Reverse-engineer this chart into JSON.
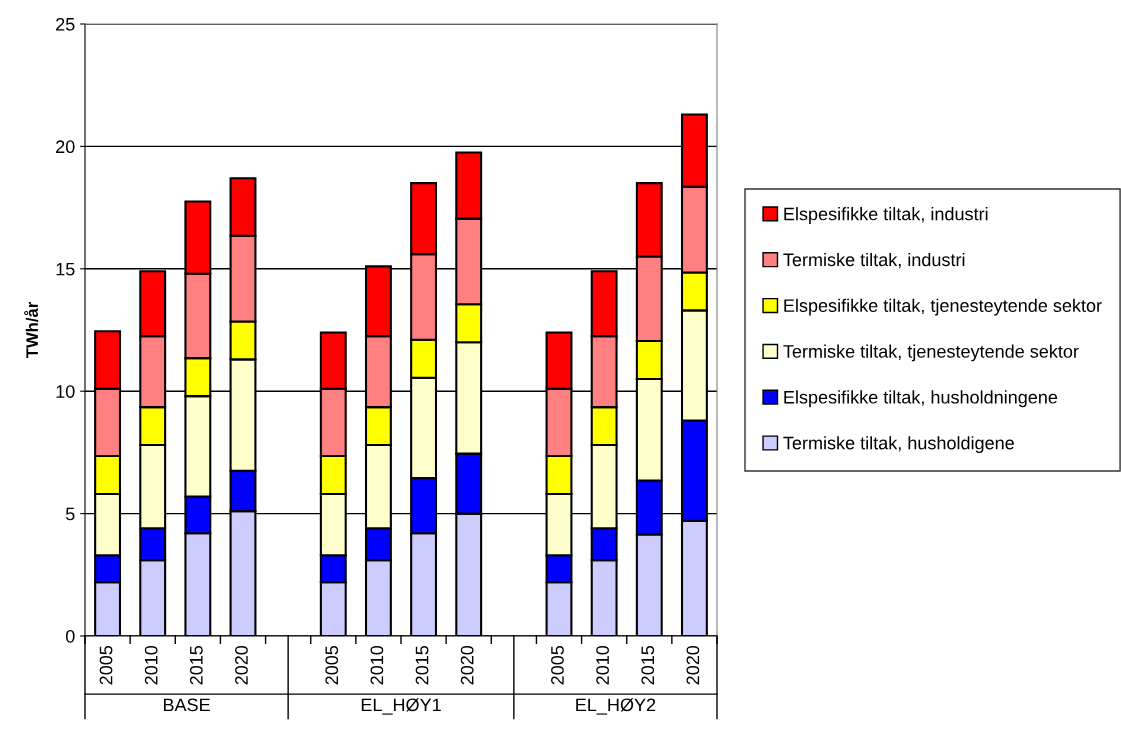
{
  "chart_data": {
    "type": "bar",
    "stacked": true,
    "ylabel": "TWh/år",
    "categories": [
      "2005",
      "2010",
      "2015",
      "2020",
      null,
      "2005",
      "2010",
      "2015",
      "2020",
      null,
      "2005",
      "2010",
      "2015",
      "2020"
    ],
    "series": [
      {
        "name": "Termiske tiltak, husholdigene",
        "color": "#ccccff",
        "values": [
          2.2,
          3.1,
          4.2,
          5.1,
          null,
          2.2,
          3.1,
          4.2,
          5.0,
          null,
          2.2,
          3.1,
          4.15,
          4.7
        ]
      },
      {
        "name": "Elspesifikke tiltak, husholdningene",
        "color": "#0000ff",
        "values": [
          1.1,
          1.3,
          1.5,
          1.65,
          null,
          1.1,
          1.3,
          2.25,
          2.45,
          null,
          1.1,
          1.3,
          2.2,
          4.1
        ]
      },
      {
        "name": "Termiske tiltak, tjenesteytende sektor",
        "color": "#ffffcc",
        "values": [
          2.5,
          3.4,
          4.1,
          4.55,
          null,
          2.5,
          3.4,
          4.1,
          4.55,
          null,
          2.5,
          3.4,
          4.15,
          4.5
        ]
      },
      {
        "name": "Elspesifikke tiltak, tjenesteytende sektor",
        "color": "#ffff00",
        "values": [
          1.55,
          1.55,
          1.55,
          1.55,
          null,
          1.55,
          1.55,
          1.55,
          1.55,
          null,
          1.55,
          1.55,
          1.55,
          1.55
        ]
      },
      {
        "name": "Termiske tiltak, industri",
        "color": "#ff8080",
        "values": [
          2.75,
          2.9,
          3.45,
          3.5,
          null,
          2.75,
          2.9,
          3.5,
          3.5,
          null,
          2.75,
          2.9,
          3.45,
          3.5
        ]
      },
      {
        "name": "Elspesifikke tiltak, industri",
        "color": "#ff0000",
        "values": [
          2.35,
          2.65,
          2.95,
          2.35,
          null,
          2.3,
          2.85,
          2.9,
          2.7,
          null,
          2.3,
          2.65,
          3.0,
          2.95
        ]
      }
    ],
    "annotations": [
      "BASE",
      "EL_HØY1",
      "EL_HØY2"
    ],
    "ylim": [
      0,
      25
    ],
    "yticks": [
      0,
      5,
      10,
      15,
      20,
      25
    ],
    "grid": "y",
    "legend": "right"
  }
}
